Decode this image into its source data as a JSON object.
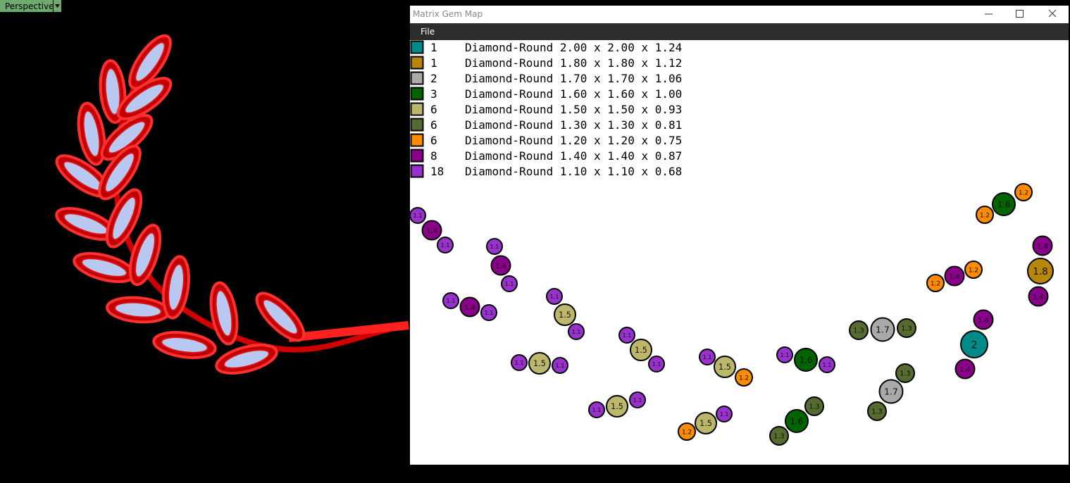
{
  "viewport_label": "Perspective",
  "window": {
    "title": "Matrix Gem Map",
    "menu": [
      "File"
    ]
  },
  "legend": [
    {
      "count": "1",
      "description": "Diamond-Round 2.00 x 2.00 x 1.24",
      "color": "#008b8b",
      "map_label": "2"
    },
    {
      "count": "1",
      "description": "Diamond-Round 1.80 x 1.80 x 1.12",
      "color": "#b8860b",
      "map_label": "1.8"
    },
    {
      "count": "2",
      "description": "Diamond-Round 1.70 x 1.70 x 1.06",
      "color": "#a9a9a9",
      "map_label": "1.7"
    },
    {
      "count": "3",
      "description": "Diamond-Round 1.60 x 1.60 x 1.00",
      "color": "#006400",
      "map_label": "1.6"
    },
    {
      "count": "6",
      "description": "Diamond-Round 1.50 x 1.50 x 0.93",
      "color": "#bdb76b",
      "map_label": "1.5"
    },
    {
      "count": "6",
      "description": "Diamond-Round 1.30 x 1.30 x 0.81",
      "color": "#556b2f",
      "map_label": "1.3"
    },
    {
      "count": "6",
      "description": "Diamond-Round 1.20 x 1.20 x 0.75",
      "color": "#ff8c00",
      "map_label": "1.2"
    },
    {
      "count": "8",
      "description": "Diamond-Round 1.40 x 1.40 x 0.87",
      "color": "#8b008b",
      "map_label": "1.4"
    },
    {
      "count": "18",
      "description": "Diamond-Round 1.10 x 1.10 x 0.68",
      "color": "#9932cc",
      "map_label": "1.1"
    }
  ]
}
